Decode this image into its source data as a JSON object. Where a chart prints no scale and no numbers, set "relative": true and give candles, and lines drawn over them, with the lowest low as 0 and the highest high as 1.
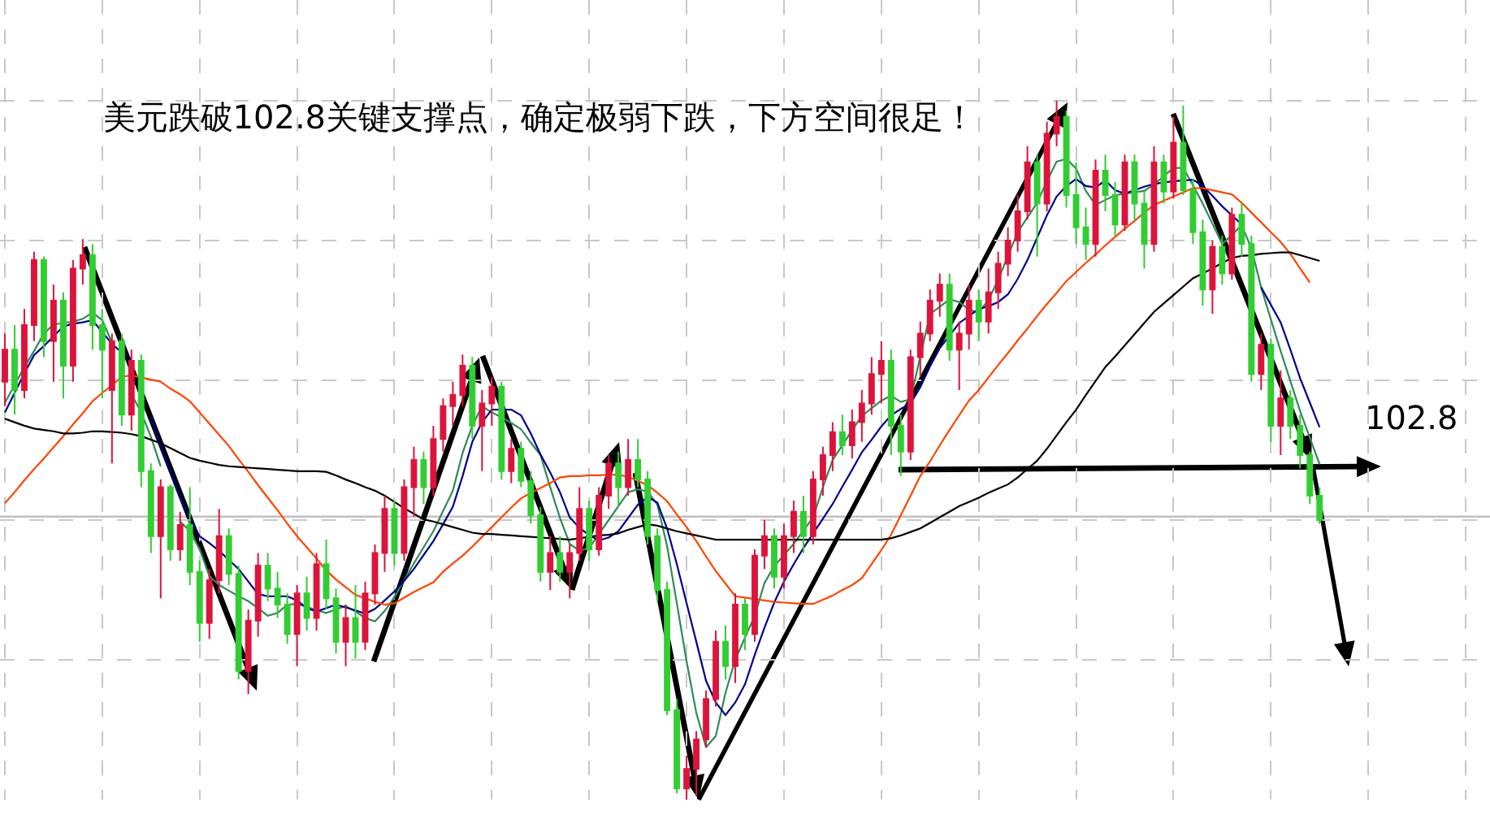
{
  "chart_data": {
    "type": "candlestick",
    "title": "美元跌破102.8关键支撑点，确定极弱下跌，下方空间很足！",
    "relative": true,
    "grid": true,
    "categories": [
      null,
      null,
      null,
      null,
      null,
      null,
      null,
      null,
      null,
      null,
      null,
      null,
      null,
      null,
      null,
      null,
      null,
      null,
      null,
      null,
      null,
      null,
      null,
      null,
      null,
      null,
      null,
      null,
      null,
      null,
      null,
      null,
      null,
      null,
      null,
      null,
      null,
      null,
      null,
      null,
      null,
      null,
      null,
      null,
      null,
      null,
      null,
      null,
      null,
      null,
      null,
      null,
      null,
      null,
      null,
      null,
      null,
      null,
      null,
      null,
      null,
      null,
      null,
      null,
      null,
      null,
      null,
      null,
      null,
      null,
      null,
      null,
      null,
      null,
      null,
      null,
      null,
      null,
      null,
      null,
      null,
      null,
      null,
      null,
      null,
      null,
      null,
      null,
      null,
      null,
      null,
      null,
      null,
      null,
      null,
      null,
      null,
      null,
      null,
      null,
      null,
      null,
      null,
      null,
      null,
      null,
      null,
      null,
      null,
      null,
      null,
      null,
      null,
      null,
      null,
      null,
      null,
      null,
      null,
      null,
      null,
      null,
      null,
      null,
      null,
      null,
      null,
      null,
      null,
      null,
      null,
      null,
      null,
      null,
      null,
      null,
      null,
      null,
      null,
      null,
      null,
      null,
      null,
      null,
      null,
      null,
      null,
      null,
      null,
      null,
      null,
      null,
      null
    ],
    "ohlc": [
      [
        0.598,
        0.667,
        0.563,
        0.644
      ],
      [
        0.644,
        0.679,
        0.551,
        0.586
      ],
      [
        0.586,
        0.702,
        0.574,
        0.679
      ],
      [
        0.679,
        0.784,
        0.656,
        0.772
      ],
      [
        0.772,
        0.777,
        0.633,
        0.656
      ],
      [
        0.656,
        0.737,
        0.598,
        0.714
      ],
      [
        0.714,
        0.726,
        0.574,
        0.621
      ],
      [
        0.621,
        0.772,
        0.598,
        0.76
      ],
      [
        0.76,
        0.802,
        0.737,
        0.779
      ],
      [
        0.779,
        0.795,
        0.644,
        0.679
      ],
      [
        0.679,
        0.702,
        0.574,
        0.644
      ],
      [
        0.586,
        0.667,
        0.481,
        0.656
      ],
      [
        0.656,
        0.667,
        0.535,
        0.551
      ],
      [
        0.551,
        0.644,
        0.528,
        0.628
      ],
      [
        0.628,
        0.637,
        0.447,
        0.47
      ],
      [
        0.47,
        0.481,
        0.353,
        0.377
      ],
      [
        0.377,
        0.458,
        0.288,
        0.447
      ],
      [
        0.447,
        0.451,
        0.342,
        0.358
      ],
      [
        0.358,
        0.412,
        0.342,
        0.393
      ],
      [
        0.393,
        0.447,
        0.307,
        0.326
      ],
      [
        0.326,
        0.342,
        0.226,
        0.253
      ],
      [
        0.253,
        0.33,
        0.23,
        0.314
      ],
      [
        0.314,
        0.416,
        0.295,
        0.377
      ],
      [
        0.377,
        0.388,
        0.307,
        0.323
      ],
      [
        0.323,
        0.335,
        0.172,
        0.184
      ],
      [
        0.184,
        0.272,
        0.151,
        0.256
      ],
      [
        0.256,
        0.353,
        0.233,
        0.335
      ],
      [
        0.335,
        0.353,
        0.284,
        0.302
      ],
      [
        0.302,
        0.326,
        0.26,
        0.279
      ],
      [
        0.279,
        0.295,
        0.223,
        0.237
      ],
      [
        0.237,
        0.307,
        0.191,
        0.295
      ],
      [
        0.295,
        0.319,
        0.242,
        0.26
      ],
      [
        0.26,
        0.353,
        0.242,
        0.337
      ],
      [
        0.337,
        0.372,
        0.272,
        0.288
      ],
      [
        0.288,
        0.302,
        0.209,
        0.226
      ],
      [
        0.226,
        0.279,
        0.191,
        0.26
      ],
      [
        0.26,
        0.307,
        0.202,
        0.226
      ],
      [
        0.226,
        0.312,
        0.214,
        0.295
      ],
      [
        0.295,
        0.365,
        0.279,
        0.353
      ],
      [
        0.353,
        0.435,
        0.326,
        0.416
      ],
      [
        0.416,
        0.428,
        0.335,
        0.353
      ],
      [
        0.353,
        0.458,
        0.342,
        0.447
      ],
      [
        0.447,
        0.505,
        0.405,
        0.486
      ],
      [
        0.486,
        0.498,
        0.423,
        0.447
      ],
      [
        0.447,
        0.535,
        0.435,
        0.516
      ],
      [
        0.516,
        0.574,
        0.498,
        0.563
      ],
      [
        0.563,
        0.598,
        0.535,
        0.579
      ],
      [
        0.579,
        0.637,
        0.563,
        0.621
      ],
      [
        0.621,
        0.633,
        0.516,
        0.535
      ],
      [
        0.535,
        0.586,
        0.47,
        0.567
      ],
      [
        0.567,
        0.605,
        0.535,
        0.591
      ],
      [
        0.591,
        0.598,
        0.458,
        0.47
      ],
      [
        0.47,
        0.516,
        0.453,
        0.502
      ],
      [
        0.502,
        0.512,
        0.447,
        0.456
      ],
      [
        0.456,
        0.47,
        0.395,
        0.407
      ],
      [
        0.407,
        0.419,
        0.312,
        0.326
      ],
      [
        0.326,
        0.377,
        0.3,
        0.353
      ],
      [
        0.353,
        0.377,
        0.312,
        0.326
      ],
      [
        0.326,
        0.365,
        0.288,
        0.353
      ],
      [
        0.353,
        0.447,
        0.342,
        0.416
      ],
      [
        0.416,
        0.428,
        0.342,
        0.358
      ],
      [
        0.358,
        0.447,
        0.349,
        0.435
      ],
      [
        0.435,
        0.493,
        0.416,
        0.481
      ],
      [
        0.481,
        0.498,
        0.419,
        0.447
      ],
      [
        0.447,
        0.516,
        0.435,
        0.486
      ],
      [
        0.486,
        0.516,
        0.447,
        0.458
      ],
      [
        0.458,
        0.47,
        0.365,
        0.377
      ],
      [
        0.377,
        0.388,
        0.284,
        0.3
      ],
      [
        0.3,
        0.312,
        0.121,
        0.128
      ],
      [
        0.128,
        0.144,
        0.009,
        0.016
      ],
      [
        0.016,
        0.063,
        0.0,
        0.044
      ],
      [
        0.044,
        0.098,
        0.005,
        0.086
      ],
      [
        0.086,
        0.156,
        0.074,
        0.144
      ],
      [
        0.144,
        0.242,
        0.133,
        0.226
      ],
      [
        0.226,
        0.249,
        0.172,
        0.191
      ],
      [
        0.191,
        0.295,
        0.167,
        0.279
      ],
      [
        0.279,
        0.288,
        0.214,
        0.237
      ],
      [
        0.237,
        0.358,
        0.226,
        0.349
      ],
      [
        0.349,
        0.4,
        0.33,
        0.377
      ],
      [
        0.377,
        0.388,
        0.302,
        0.319
      ],
      [
        0.319,
        0.395,
        0.302,
        0.377
      ],
      [
        0.377,
        0.428,
        0.353,
        0.412
      ],
      [
        0.412,
        0.435,
        0.353,
        0.377
      ],
      [
        0.377,
        0.47,
        0.365,
        0.458
      ],
      [
        0.458,
        0.505,
        0.435,
        0.493
      ],
      [
        0.493,
        0.54,
        0.47,
        0.526
      ],
      [
        0.526,
        0.551,
        0.493,
        0.507
      ],
      [
        0.507,
        0.558,
        0.488,
        0.54
      ],
      [
        0.54,
        0.586,
        0.512,
        0.567
      ],
      [
        0.567,
        0.633,
        0.551,
        0.609
      ],
      [
        0.609,
        0.656,
        0.567,
        0.628
      ],
      [
        0.628,
        0.644,
        0.493,
        0.535
      ],
      [
        0.535,
        0.551,
        0.463,
        0.498
      ],
      [
        0.498,
        0.644,
        0.486,
        0.633
      ],
      [
        0.633,
        0.684,
        0.605,
        0.667
      ],
      [
        0.667,
        0.73,
        0.656,
        0.714
      ],
      [
        0.714,
        0.753,
        0.691,
        0.737
      ],
      [
        0.737,
        0.753,
        0.628,
        0.644
      ],
      [
        0.644,
        0.684,
        0.586,
        0.667
      ],
      [
        0.667,
        0.737,
        0.644,
        0.714
      ],
      [
        0.714,
        0.73,
        0.656,
        0.684
      ],
      [
        0.684,
        0.76,
        0.667,
        0.726
      ],
      [
        0.726,
        0.784,
        0.702,
        0.767
      ],
      [
        0.767,
        0.819,
        0.749,
        0.8
      ],
      [
        0.8,
        0.865,
        0.784,
        0.842
      ],
      [
        0.842,
        0.935,
        0.83,
        0.912
      ],
      [
        0.912,
        0.923,
        0.777,
        0.853
      ],
      [
        0.853,
        0.97,
        0.842,
        0.953
      ],
      [
        0.953,
        1.0,
        0.935,
        0.977
      ],
      [
        0.977,
        0.986,
        0.847,
        0.865
      ],
      [
        0.865,
        0.912,
        0.795,
        0.819
      ],
      [
        0.819,
        0.847,
        0.772,
        0.795
      ],
      [
        0.795,
        0.916,
        0.777,
        0.9
      ],
      [
        0.9,
        0.923,
        0.842,
        0.865
      ],
      [
        0.865,
        0.884,
        0.807,
        0.823
      ],
      [
        0.823,
        0.923,
        0.814,
        0.912
      ],
      [
        0.912,
        0.923,
        0.83,
        0.853
      ],
      [
        0.853,
        0.87,
        0.76,
        0.795
      ],
      [
        0.795,
        0.935,
        0.784,
        0.912
      ],
      [
        0.912,
        0.923,
        0.853,
        0.87
      ],
      [
        0.87,
        0.977,
        0.86,
        0.94
      ],
      [
        0.94,
        0.993,
        0.865,
        0.872
      ],
      [
        0.872,
        0.888,
        0.795,
        0.812
      ],
      [
        0.812,
        0.83,
        0.707,
        0.73
      ],
      [
        0.73,
        0.8,
        0.695,
        0.791
      ],
      [
        0.791,
        0.807,
        0.737,
        0.753
      ],
      [
        0.753,
        0.847,
        0.744,
        0.837
      ],
      [
        0.837,
        0.853,
        0.777,
        0.795
      ],
      [
        0.795,
        0.807,
        0.598,
        0.609
      ],
      [
        0.609,
        0.667,
        0.586,
        0.651
      ],
      [
        0.651,
        0.66,
        0.512,
        0.535
      ],
      [
        0.535,
        0.614,
        0.493,
        0.574
      ],
      [
        0.574,
        0.586,
        0.516,
        0.535
      ],
      [
        0.535,
        0.551,
        0.474,
        0.493
      ],
      [
        0.493,
        0.498,
        0.423,
        0.435
      ],
      [
        0.435,
        0.447,
        0.395,
        0.4
      ],
      null,
      null,
      null,
      null,
      null,
      null,
      null,
      null,
      null,
      null,
      null,
      null,
      null,
      null,
      null,
      null,
      null
    ],
    "colors": [
      "#dc143c",
      "#32cd32",
      "#dc143c",
      "#dc143c",
      "#32cd32",
      "#dc143c",
      "#32cd32",
      "#dc143c",
      "#dc143c",
      "#32cd32",
      "#32cd32",
      "#dc143c",
      "#32cd32",
      "#dc143c",
      "#32cd32",
      "#32cd32",
      "#dc143c",
      "#32cd32",
      "#dc143c",
      "#32cd32",
      "#32cd32",
      "#dc143c",
      "#dc143c",
      "#32cd32",
      "#32cd32",
      "#dc143c",
      "#dc143c",
      "#32cd32",
      "#32cd32",
      "#32cd32",
      "#dc143c",
      "#32cd32",
      "#dc143c",
      "#32cd32",
      "#32cd32",
      "#dc143c",
      "#32cd32",
      "#dc143c",
      "#dc143c",
      "#dc143c",
      "#32cd32",
      "#dc143c",
      "#dc143c",
      "#32cd32",
      "#dc143c",
      "#dc143c",
      "#dc143c",
      "#dc143c",
      "#32cd32",
      "#dc143c",
      "#dc143c",
      "#32cd32",
      "#dc143c",
      "#32cd32",
      "#32cd32",
      "#32cd32",
      "#dc143c",
      "#32cd32",
      "#dc143c",
      "#dc143c",
      "#32cd32",
      "#dc143c",
      "#dc143c",
      "#32cd32",
      "#dc143c",
      "#32cd32",
      "#32cd32",
      "#32cd32",
      "#32cd32",
      "#32cd32",
      "#dc143c",
      "#dc143c",
      "#dc143c",
      "#dc143c",
      "#32cd32",
      "#dc143c",
      "#32cd32",
      "#dc143c",
      "#dc143c",
      "#32cd32",
      "#dc143c",
      "#dc143c",
      "#32cd32",
      "#dc143c",
      "#dc143c",
      "#dc143c",
      "#32cd32",
      "#dc143c",
      "#dc143c",
      "#dc143c",
      "#dc143c",
      "#32cd32",
      "#32cd32",
      "#dc143c",
      "#dc143c",
      "#dc143c",
      "#dc143c",
      "#32cd32",
      "#dc143c",
      "#dc143c",
      "#32cd32",
      "#dc143c",
      "#dc143c",
      "#dc143c",
      "#dc143c",
      "#dc143c",
      "#32cd32",
      "#dc143c",
      "#dc143c",
      "#32cd32",
      "#32cd32",
      "#32cd32",
      "#dc143c",
      "#32cd32",
      "#32cd32",
      "#dc143c",
      "#32cd32",
      "#32cd32",
      "#dc143c",
      "#32cd32",
      "#dc143c",
      "#32cd32",
      "#32cd32",
      "#32cd32",
      "#dc143c",
      "#32cd32",
      "#dc143c",
      "#32cd32",
      "#32cd32",
      "#dc143c",
      "#32cd32",
      "#dc143c",
      "#32cd32",
      "#32cd32",
      "#32cd32",
      "#32cd32",
      null,
      null,
      null,
      null,
      null,
      null,
      null,
      null,
      null,
      null,
      null,
      null,
      null,
      null,
      null,
      null,
      null
    ],
    "ref_lines": [
      {
        "axis": "y",
        "value": 0.405,
        "color": "#c0c0c0"
      }
    ],
    "annotations": [
      "102.8"
    ],
    "series": [
      {
        "type": "line",
        "color": "#2e8b57",
        "values": [
          0.568,
          0.593,
          0.619,
          0.642,
          0.667,
          0.68,
          0.682,
          0.684,
          0.688,
          0.697,
          0.686,
          0.654,
          null,
          0.58,
          0.554,
          0.519,
          0.477,
          null,
          0.398,
          0.384,
          0.358,
          0.32,
          0.307,
          0.299,
          0.291,
          0.284,
          0.274,
          0.263,
          0.267,
          0.279,
          0.28,
          0.276,
          0.271,
          0.267,
          0.272,
          0.277,
          0.269,
          0.26,
          0.255,
          0.27,
          0.29,
          0.314,
          0.338,
          0.361,
          0.384,
          0.413,
          0.442,
          0.496,
          0.535,
          0.563,
          0.554,
          0.547,
          0.539,
          0.53,
          0.511,
          0.493,
          0.447,
          0.403,
          0.366,
          0.356,
          0.36,
          0.38,
          0.4,
          0.42,
          0.44,
          0.444,
          0.441,
          0.422,
          0.363,
          0.281,
          0.198,
          0.124,
          0.075,
          0.091,
          0.153,
          0.2,
          0.232,
          0.263,
          0.31,
          0.334,
          0.35,
          0.366,
          0.385,
          0.404,
          0.447,
          0.486,
          0.507,
          0.529,
          0.549,
          0.56,
          0.571,
          0.578,
          0.569,
          0.573,
          0.634,
          0.695,
          0.705,
          0.716,
          0.712,
          0.701,
          0.697,
          0.715,
          0.744,
          0.778,
          0.812,
          0.833,
          0.854,
          0.885,
          0.913,
          0.917,
          0.903,
          0.871,
          0.851,
          0.858,
          0.865,
          0.867,
          0.869,
          0.871,
          0.88,
          0.892,
          0.904,
          0.904,
          0.879,
          0.853,
          0.824,
          0.795,
          0.808,
          0.822,
          0.789,
          0.733,
          0.687,
          0.642,
          0.599,
          0.556,
          0.518,
          0.48,
          null,
          null,
          null,
          null,
          null,
          null,
          null,
          null,
          null,
          null,
          null,
          null,
          null,
          null,
          null,
          null,
          null
        ]
      },
      {
        "type": "line",
        "color": "#00008b",
        "values": [
          0.554,
          0.582,
          0.61,
          0.636,
          0.649,
          0.663,
          0.677,
          0.681,
          0.683,
          0.686,
          0.669,
          0.652,
          0.64,
          0.63,
          null,
          0.547,
          0.505,
          0.47,
          0.432,
          0.402,
          0.377,
          0.367,
          0.356,
          0.343,
          0.33,
          0.312,
          0.294,
          0.291,
          0.291,
          0.291,
          0.285,
          0.274,
          0.269,
          0.274,
          0.279,
          0.275,
          0.271,
          0.266,
          0.273,
          0.285,
          0.298,
          0.313,
          0.33,
          0.35,
          0.37,
          0.394,
          0.419,
          0.463,
          0.512,
          0.54,
          0.558,
          0.558,
          0.558,
          0.55,
          0.524,
          0.494,
          0.468,
          0.44,
          0.404,
          0.389,
          0.378,
          0.371,
          0.375,
          0.384,
          0.403,
          0.422,
          0.433,
          0.425,
          0.388,
          0.337,
          0.281,
          0.226,
          0.17,
          0.139,
          0.121,
          0.139,
          0.165,
          0.207,
          0.246,
          0.282,
          0.312,
          0.337,
          0.36,
          0.381,
          0.402,
          0.423,
          0.448,
          0.472,
          0.497,
          0.515,
          0.534,
          0.55,
          0.559,
          0.567,
          0.59,
          0.62,
          0.646,
          0.664,
          0.682,
          0.692,
          0.702,
          0.706,
          0.712,
          0.723,
          0.745,
          0.772,
          0.804,
          0.836,
          0.863,
          0.878,
          0.888,
          0.878,
          0.876,
          0.886,
          0.872,
          0.867,
          0.872,
          0.877,
          0.881,
          0.883,
          0.885,
          0.886,
          0.887,
          0.878,
          0.864,
          0.849,
          0.836,
          0.823,
          null,
          0.733,
          0.708,
          0.683,
          0.644,
          0.603,
          0.568,
          0.533,
          null,
          null,
          null,
          null,
          null,
          null,
          null,
          null,
          null,
          null,
          null,
          null,
          null,
          null,
          null,
          null,
          null
        ]
      },
      {
        "type": "line",
        "color": "#ff4500",
        "values": [
          0.424,
          0.44,
          0.457,
          0.473,
          0.488,
          0.504,
          0.52,
          0.537,
          0.553,
          0.57,
          0.582,
          0.593,
          0.605,
          0.607,
          0.604,
          0.601,
          0.598,
          0.588,
          0.58,
          0.57,
          0.554,
          0.538,
          0.522,
          0.506,
          0.487,
          0.469,
          0.45,
          0.432,
          0.414,
          0.395,
          0.377,
          0.361,
          0.345,
          0.328,
          0.315,
          0.304,
          0.293,
          0.288,
          0.283,
          0.279,
          0.281,
          0.289,
          0.297,
          0.304,
          0.311,
          0.326,
          0.338,
          0.349,
          0.362,
          0.376,
          0.39,
          0.404,
          0.418,
          0.431,
          0.439,
          0.446,
          0.453,
          0.461,
          0.463,
          0.463,
          0.464,
          0.464,
          0.465,
          0.465,
          0.462,
          0.456,
          0.45,
          0.439,
          0.427,
          0.408,
          0.39,
          0.37,
          0.348,
          0.327,
          0.309,
          0.291,
          0.289,
          0.287,
          0.285,
          0.283,
          0.282,
          0.281,
          0.28,
          0.28,
          0.286,
          0.292,
          0.3,
          0.307,
          0.317,
          0.337,
          0.357,
          0.379,
          0.407,
          0.435,
          0.463,
          0.484,
          0.507,
          0.529,
          0.55,
          0.571,
          0.586,
          0.604,
          0.622,
          0.639,
          0.657,
          0.674,
          0.692,
          0.709,
          0.725,
          0.742,
          0.755,
          0.768,
          0.78,
          0.793,
          0.805,
          0.817,
          0.828,
          0.84,
          0.851,
          0.857,
          0.863,
          0.869,
          0.875,
          0.875,
          0.872,
          0.869,
          0.866,
          0.854,
          0.84,
          0.826,
          0.812,
          0.798,
          0.781,
          0.76,
          0.74,
          null,
          null,
          null,
          null,
          null,
          null,
          null,
          null,
          null,
          null,
          null,
          null,
          null,
          null,
          null,
          null,
          null,
          null
        ]
      },
      {
        "type": "line",
        "color": "#000000",
        "values": [
          0.545,
          0.54,
          0.535,
          0.531,
          0.529,
          0.527,
          0.524,
          0.524,
          0.525,
          0.527,
          0.527,
          0.526,
          0.525,
          0.523,
          0.52,
          0.515,
          0.51,
          0.503,
          0.496,
          0.489,
          0.485,
          0.482,
          0.479,
          0.477,
          0.476,
          0.475,
          0.474,
          0.473,
          0.472,
          0.471,
          0.47,
          0.47,
          0.47,
          0.469,
          0.464,
          0.458,
          0.453,
          0.447,
          0.442,
          0.435,
          0.426,
          0.417,
          0.409,
          0.401,
          0.398,
          0.394,
          0.39,
          0.386,
          0.382,
          0.38,
          0.38,
          0.379,
          0.378,
          0.377,
          0.376,
          0.375,
          0.374,
          0.373,
          0.372,
          0.374,
          0.376,
          0.378,
          0.379,
          0.381,
          0.386,
          0.39,
          0.394,
          0.392,
          0.388,
          0.384,
          0.381,
          0.378,
          0.375,
          0.372,
          0.372,
          0.372,
          0.372,
          0.372,
          0.372,
          0.372,
          0.372,
          0.372,
          0.372,
          0.372,
          0.372,
          0.372,
          0.372,
          0.372,
          0.372,
          0.372,
          0.372,
          0.374,
          0.378,
          0.383,
          0.388,
          0.396,
          0.404,
          0.412,
          0.42,
          0.426,
          0.432,
          0.439,
          0.445,
          0.451,
          0.461,
          0.473,
          0.485,
          0.502,
          0.521,
          0.54,
          0.558,
          0.579,
          0.599,
          0.619,
          0.634,
          0.65,
          0.666,
          0.682,
          0.698,
          0.71,
          0.722,
          0.734,
          0.746,
          0.753,
          0.76,
          0.768,
          0.775,
          0.778,
          0.779,
          0.781,
          0.782,
          0.783,
          0.783,
          0.779,
          0.775,
          0.771,
          null,
          null,
          null,
          null,
          null,
          null,
          null,
          null,
          null,
          null,
          null,
          null,
          null,
          null,
          null,
          null,
          null
        ]
      }
    ]
  }
}
